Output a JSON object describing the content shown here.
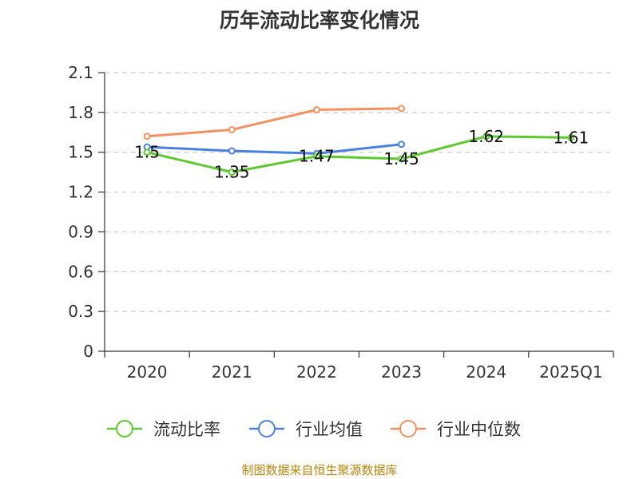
{
  "chart_data": {
    "type": "line",
    "title": "历年流动比率变化情况",
    "categories": [
      "2020",
      "2021",
      "2022",
      "2023",
      "2024",
      "2025Q1"
    ],
    "ylim": [
      0,
      2.1
    ],
    "yticks": [
      "0",
      "0.3",
      "0.6",
      "0.9",
      "1.2",
      "1.5",
      "1.8",
      "2.1"
    ],
    "grid": true,
    "legend_position": "bottom",
    "series": [
      {
        "name": "流动比率",
        "color": "#5cc92e",
        "values": [
          1.5,
          1.35,
          1.47,
          1.45,
          1.62,
          1.61
        ],
        "labels": [
          "1.5",
          "1.35",
          "1.47",
          "1.45",
          "1.62",
          "1.61"
        ]
      },
      {
        "name": "行业均值",
        "color": "#4a80e0",
        "values": [
          1.54,
          1.51,
          1.49,
          1.56,
          null,
          null
        ]
      },
      {
        "name": "行业中位数",
        "color": "#f59060",
        "values": [
          1.62,
          1.67,
          1.82,
          1.83,
          null,
          null
        ]
      }
    ],
    "source": "制图数据来自恒生聚源数据库"
  }
}
